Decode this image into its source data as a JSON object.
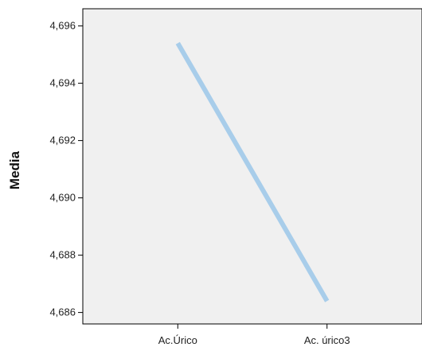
{
  "chart_data": {
    "type": "line",
    "title": "",
    "xlabel": "",
    "ylabel": "Media",
    "categories": [
      "Ac.Úrico",
      "Ac. úrico3"
    ],
    "series": [
      {
        "values": [
          4.6954,
          4.6864
        ],
        "color": "#a8cdea"
      }
    ],
    "ylim": [
      4.6856,
      4.6966
    ],
    "yticks": [
      4.686,
      4.688,
      4.69,
      4.692,
      4.694,
      4.696
    ],
    "ytick_labels": [
      "4,686",
      "4,688",
      "4,690",
      "4,692",
      "4,694",
      "4,696"
    ],
    "grid": false,
    "legend": "none",
    "plot_background": "#f0f0f0",
    "axis_color": "#000000"
  }
}
